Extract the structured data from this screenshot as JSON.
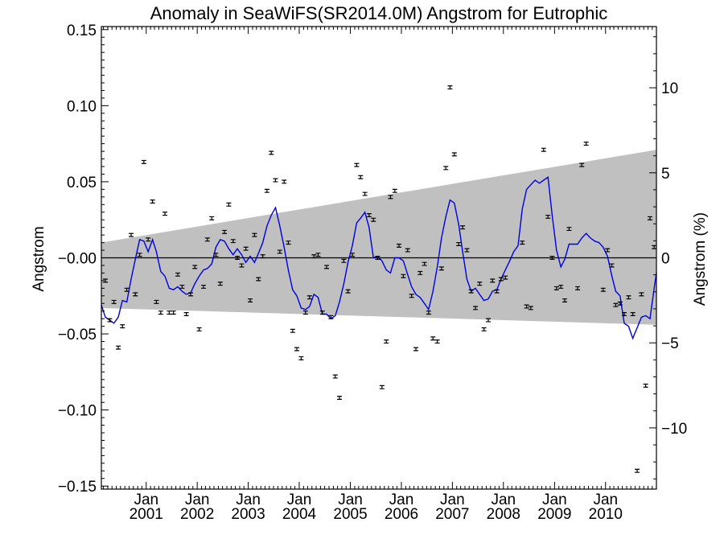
{
  "chart_data": {
    "type": "scatter",
    "title": "Anomaly in SeaWiFS(SR2014.0M) Angstrom for Eutrophic",
    "ylabel": "Angstrom",
    "ylabel_right": "Angstrom (%)",
    "xlim": [
      "2000-02-15",
      "2010-12-31"
    ],
    "ylim": [
      -0.152,
      0.152
    ],
    "ylim_right": [
      -13.6,
      13.6
    ],
    "yticks": [
      -0.15,
      -0.1,
      -0.05,
      0.0,
      0.05,
      0.1,
      0.15
    ],
    "ytick_labels": [
      "−0.15",
      "−0.10",
      "−0.05",
      "−0.00",
      "0.05",
      "0.10",
      "0.15"
    ],
    "yticks_right": [
      -10,
      -5,
      0,
      5,
      10
    ],
    "ytick_right_labels": [
      "−10",
      "−5",
      "0",
      "5",
      "10"
    ],
    "xticks": [
      {
        "date": "2001-01-01",
        "label1": "Jan",
        "label2": "2001"
      },
      {
        "date": "2002-01-01",
        "label1": "Jan",
        "label2": "2002"
      },
      {
        "date": "2003-01-01",
        "label1": "Jan",
        "label2": "2003"
      },
      {
        "date": "2004-01-01",
        "label1": "Jan",
        "label2": "2004"
      },
      {
        "date": "2005-01-01",
        "label1": "Jan",
        "label2": "2005"
      },
      {
        "date": "2006-01-01",
        "label1": "Jan",
        "label2": "2006"
      },
      {
        "date": "2007-01-01",
        "label1": "Jan",
        "label2": "2007"
      },
      {
        "date": "2008-01-01",
        "label1": "Jan",
        "label2": "2008"
      },
      {
        "date": "2009-01-01",
        "label1": "Jan",
        "label2": "2009"
      },
      {
        "date": "2010-01-01",
        "label1": "Jan",
        "label2": "2010"
      }
    ],
    "zero_line": 0,
    "band": {
      "color": "#c0c0c0",
      "upper": [
        [
          "2000-02-15",
          0.01
        ],
        [
          "2010-12-31",
          0.071
        ]
      ],
      "lower": [
        [
          "2000-02-15",
          -0.033
        ],
        [
          "2010-12-31",
          -0.044
        ]
      ]
    },
    "series": [
      {
        "style": "points_with_errorbars",
        "color": "#000000",
        "error": 0.001,
        "points": [
          [
            "2000-03-15",
            -0.015
          ],
          [
            "2000-04-15",
            -0.041
          ],
          [
            "2000-05-15",
            -0.029
          ],
          [
            "2000-06-15",
            -0.059
          ],
          [
            "2000-07-15",
            -0.045
          ],
          [
            "2000-08-15",
            -0.021
          ],
          [
            "2000-09-15",
            0.015
          ],
          [
            "2000-10-15",
            -0.024
          ],
          [
            "2000-11-15",
            0.002
          ],
          [
            "2000-12-15",
            0.063
          ],
          [
            "2001-01-15",
            0.012
          ],
          [
            "2001-02-15",
            0.037
          ],
          [
            "2001-03-15",
            -0.029
          ],
          [
            "2001-04-15",
            -0.036
          ],
          [
            "2001-05-15",
            0.029
          ],
          [
            "2001-06-15",
            -0.036
          ],
          [
            "2001-07-15",
            -0.036
          ],
          [
            "2001-08-15",
            -0.011
          ],
          [
            "2001-09-15",
            -0.019
          ],
          [
            "2001-10-15",
            -0.037
          ],
          [
            "2001-11-15",
            -0.024
          ],
          [
            "2001-12-15",
            -0.006
          ],
          [
            "2002-01-15",
            -0.047
          ],
          [
            "2002-02-15",
            -0.019
          ],
          [
            "2002-03-15",
            0.012
          ],
          [
            "2002-04-15",
            0.026
          ],
          [
            "2002-05-15",
            0.002
          ],
          [
            "2002-06-15",
            -0.017
          ],
          [
            "2002-07-15",
            0.017
          ],
          [
            "2002-08-15",
            0.035
          ],
          [
            "2002-09-15",
            0.011
          ],
          [
            "2002-10-15",
            0.0
          ],
          [
            "2002-11-15",
            -0.005
          ],
          [
            "2002-12-15",
            0.006
          ],
          [
            "2003-01-15",
            -0.028
          ],
          [
            "2003-02-15",
            0.015
          ],
          [
            "2003-03-15",
            -0.014
          ],
          [
            "2003-04-15",
            0.001
          ],
          [
            "2003-05-15",
            0.044
          ],
          [
            "2003-06-15",
            0.069
          ],
          [
            "2003-07-15",
            0.051
          ],
          [
            "2003-08-15",
            0.004
          ],
          [
            "2003-09-15",
            0.05
          ],
          [
            "2003-10-15",
            0.01
          ],
          [
            "2003-11-15",
            -0.048
          ],
          [
            "2003-12-15",
            -0.06
          ],
          [
            "2004-01-15",
            -0.066
          ],
          [
            "2004-02-15",
            -0.036
          ],
          [
            "2004-03-15",
            -0.026
          ],
          [
            "2004-04-15",
            0.001
          ],
          [
            "2004-05-15",
            0.002
          ],
          [
            "2004-06-15",
            -0.036
          ],
          [
            "2004-07-15",
            -0.006
          ],
          [
            "2004-08-15",
            -0.039
          ],
          [
            "2004-09-15",
            -0.078
          ],
          [
            "2004-10-15",
            -0.092
          ],
          [
            "2004-11-15",
            -0.002
          ],
          [
            "2004-12-15",
            -0.022
          ],
          [
            "2005-01-15",
            0.002
          ],
          [
            "2005-02-15",
            0.061
          ],
          [
            "2005-03-15",
            0.053
          ],
          [
            "2005-04-15",
            0.042
          ],
          [
            "2005-05-15",
            0.028
          ],
          [
            "2005-06-15",
            0.025
          ],
          [
            "2005-07-15",
            0.0
          ],
          [
            "2005-08-15",
            -0.085
          ],
          [
            "2005-09-15",
            -0.055
          ],
          [
            "2005-10-15",
            0.04
          ],
          [
            "2005-11-15",
            0.044
          ],
          [
            "2005-12-15",
            0.008
          ],
          [
            "2006-01-15",
            -0.012
          ],
          [
            "2006-02-15",
            0.005
          ],
          [
            "2006-03-15",
            -0.025
          ],
          [
            "2006-04-15",
            -0.06
          ],
          [
            "2006-05-15",
            -0.01
          ],
          [
            "2006-06-15",
            -0.004
          ],
          [
            "2006-07-15",
            -0.036
          ],
          [
            "2006-08-15",
            -0.053
          ],
          [
            "2006-09-15",
            -0.055
          ],
          [
            "2006-10-15",
            -0.007
          ],
          [
            "2006-11-15",
            0.059
          ],
          [
            "2006-12-15",
            0.112
          ],
          [
            "2007-01-15",
            0.068
          ],
          [
            "2007-02-15",
            0.009
          ],
          [
            "2007-03-15",
            0.02
          ],
          [
            "2007-04-15",
            0.005
          ],
          [
            "2007-05-15",
            -0.022
          ],
          [
            "2007-06-15",
            -0.033
          ],
          [
            "2007-07-15",
            -0.017
          ],
          [
            "2007-08-15",
            -0.047
          ],
          [
            "2007-09-15",
            -0.041
          ],
          [
            "2007-10-15",
            -0.015
          ],
          [
            "2007-11-15",
            -0.022
          ],
          [
            "2007-12-15",
            -0.014
          ],
          [
            "2008-01-15",
            -0.013
          ],
          [
            "2008-05-15",
            0.01
          ],
          [
            "2008-06-15",
            -0.032
          ],
          [
            "2008-07-15",
            -0.033
          ],
          [
            "2008-10-15",
            0.071
          ],
          [
            "2008-11-15",
            0.027
          ],
          [
            "2008-12-15",
            0.0
          ],
          [
            "2009-01-15",
            -0.02
          ],
          [
            "2009-02-15",
            -0.019
          ],
          [
            "2009-03-15",
            -0.028
          ],
          [
            "2009-04-15",
            0.019
          ],
          [
            "2009-06-15",
            -0.02
          ],
          [
            "2009-07-15",
            0.061
          ],
          [
            "2009-08-15",
            0.075
          ],
          [
            "2009-12-15",
            -0.021
          ],
          [
            "2010-01-15",
            0.005
          ],
          [
            "2010-02-15",
            -0.005
          ],
          [
            "2010-03-15",
            -0.031
          ],
          [
            "2010-04-15",
            -0.03
          ],
          [
            "2010-05-15",
            -0.037
          ],
          [
            "2010-06-15",
            -0.026
          ],
          [
            "2010-07-15",
            -0.037
          ],
          [
            "2010-08-15",
            -0.14
          ],
          [
            "2010-09-15",
            -0.024
          ],
          [
            "2010-10-15",
            -0.084
          ],
          [
            "2010-11-15",
            0.026
          ],
          [
            "2010-12-15",
            0.007
          ]
        ]
      },
      {
        "style": "line",
        "color": "#0000dd",
        "points": [
          [
            "2000-02-15",
            -0.031
          ],
          [
            "2000-03-15",
            -0.039
          ],
          [
            "2000-04-15",
            -0.041
          ],
          [
            "2000-05-15",
            -0.043
          ],
          [
            "2000-06-15",
            -0.039
          ],
          [
            "2000-07-15",
            -0.028
          ],
          [
            "2000-08-15",
            -0.029
          ],
          [
            "2000-09-15",
            -0.014
          ],
          [
            "2000-10-15",
            -0.001
          ],
          [
            "2000-11-15",
            0.012
          ],
          [
            "2000-12-15",
            0.011
          ],
          [
            "2001-01-15",
            0.004
          ],
          [
            "2001-02-15",
            0.012
          ],
          [
            "2001-03-15",
            0.004
          ],
          [
            "2001-04-15",
            -0.009
          ],
          [
            "2001-05-15",
            -0.012
          ],
          [
            "2001-06-15",
            -0.02
          ],
          [
            "2001-07-15",
            -0.021
          ],
          [
            "2001-08-15",
            -0.019
          ],
          [
            "2001-09-15",
            -0.022
          ],
          [
            "2001-10-15",
            -0.024
          ],
          [
            "2001-11-15",
            -0.023
          ],
          [
            "2001-12-15",
            -0.017
          ],
          [
            "2002-01-15",
            -0.012
          ],
          [
            "2002-02-15",
            -0.008
          ],
          [
            "2002-03-15",
            -0.007
          ],
          [
            "2002-04-15",
            -0.004
          ],
          [
            "2002-05-15",
            0.007
          ],
          [
            "2002-06-15",
            0.012
          ],
          [
            "2002-07-15",
            0.011
          ],
          [
            "2002-08-15",
            0.006
          ],
          [
            "2002-09-15",
            0.002
          ],
          [
            "2002-10-15",
            0.006
          ],
          [
            "2002-11-15",
            0.002
          ],
          [
            "2002-12-15",
            -0.003
          ],
          [
            "2003-01-15",
            0.001
          ],
          [
            "2003-02-15",
            -0.003
          ],
          [
            "2003-03-15",
            0.003
          ],
          [
            "2003-04-15",
            0.01
          ],
          [
            "2003-05-15",
            0.021
          ],
          [
            "2003-06-15",
            0.028
          ],
          [
            "2003-07-15",
            0.033
          ],
          [
            "2003-08-15",
            0.021
          ],
          [
            "2003-09-15",
            0.007
          ],
          [
            "2003-10-15",
            -0.008
          ],
          [
            "2003-11-15",
            -0.021
          ],
          [
            "2003-12-15",
            -0.025
          ],
          [
            "2004-01-15",
            -0.033
          ],
          [
            "2004-02-15",
            -0.034
          ],
          [
            "2004-03-15",
            -0.032
          ],
          [
            "2004-04-15",
            -0.024
          ],
          [
            "2004-05-15",
            -0.026
          ],
          [
            "2004-06-15",
            -0.037
          ],
          [
            "2004-07-15",
            -0.037
          ],
          [
            "2004-08-15",
            -0.04
          ],
          [
            "2004-09-15",
            -0.038
          ],
          [
            "2004-10-15",
            -0.029
          ],
          [
            "2004-11-15",
            -0.017
          ],
          [
            "2004-12-15",
            -0.003
          ],
          [
            "2005-01-15",
            0.008
          ],
          [
            "2005-02-15",
            0.023
          ],
          [
            "2005-03-15",
            0.026
          ],
          [
            "2005-04-15",
            0.03
          ],
          [
            "2005-05-15",
            0.02
          ],
          [
            "2005-06-15",
            0.0
          ],
          [
            "2005-07-15",
            0.001
          ],
          [
            "2005-08-15",
            -0.002
          ],
          [
            "2005-09-15",
            -0.008
          ],
          [
            "2005-10-15",
            -0.01
          ],
          [
            "2005-11-15",
            0.0
          ],
          [
            "2005-12-15",
            0.0
          ],
          [
            "2006-01-15",
            -0.002
          ],
          [
            "2006-02-15",
            -0.011
          ],
          [
            "2006-03-15",
            -0.019
          ],
          [
            "2006-04-15",
            -0.024
          ],
          [
            "2006-05-15",
            -0.026
          ],
          [
            "2006-06-15",
            -0.03
          ],
          [
            "2006-07-15",
            -0.034
          ],
          [
            "2006-08-15",
            -0.022
          ],
          [
            "2006-09-15",
            -0.006
          ],
          [
            "2006-10-15",
            0.013
          ],
          [
            "2006-11-15",
            0.027
          ],
          [
            "2006-12-15",
            0.038
          ],
          [
            "2007-01-15",
            0.036
          ],
          [
            "2007-02-15",
            0.022
          ],
          [
            "2007-03-15",
            0.004
          ],
          [
            "2007-04-15",
            -0.014
          ],
          [
            "2007-05-15",
            -0.022
          ],
          [
            "2007-06-15",
            -0.02
          ],
          [
            "2007-07-15",
            -0.024
          ],
          [
            "2007-08-15",
            -0.028
          ],
          [
            "2007-09-15",
            -0.027
          ],
          [
            "2007-10-15",
            -0.022
          ],
          [
            "2007-11-15",
            -0.021
          ],
          [
            "2007-12-15",
            -0.014
          ],
          [
            "2008-01-15",
            -0.008
          ],
          [
            "2008-02-15",
            -0.002
          ],
          [
            "2008-03-15",
            0.004
          ],
          [
            "2008-04-15",
            0.008
          ],
          [
            "2008-05-15",
            0.032
          ],
          [
            "2008-06-15",
            0.045
          ],
          [
            "2008-07-15",
            0.048
          ],
          [
            "2008-08-15",
            0.051
          ],
          [
            "2008-09-15",
            0.049
          ],
          [
            "2008-10-15",
            0.051
          ],
          [
            "2008-11-15",
            0.053
          ],
          [
            "2008-12-15",
            0.028
          ],
          [
            "2009-01-15",
            0.005
          ],
          [
            "2009-02-15",
            -0.006
          ],
          [
            "2009-03-15",
            -0.001
          ],
          [
            "2009-04-15",
            0.009
          ],
          [
            "2009-05-15",
            0.009
          ],
          [
            "2009-06-15",
            0.009
          ],
          [
            "2009-07-15",
            0.013
          ],
          [
            "2009-08-15",
            0.016
          ],
          [
            "2009-09-15",
            0.013
          ],
          [
            "2009-10-15",
            0.011
          ],
          [
            "2009-11-15",
            0.01
          ],
          [
            "2009-12-15",
            0.007
          ],
          [
            "2010-01-15",
            0.001
          ],
          [
            "2010-02-15",
            -0.012
          ],
          [
            "2010-03-15",
            -0.022
          ],
          [
            "2010-04-15",
            -0.025
          ],
          [
            "2010-05-15",
            -0.043
          ],
          [
            "2010-06-15",
            -0.045
          ],
          [
            "2010-07-15",
            -0.053
          ],
          [
            "2010-08-15",
            -0.046
          ],
          [
            "2010-09-15",
            -0.039
          ],
          [
            "2010-10-15",
            -0.038
          ],
          [
            "2010-11-15",
            -0.04
          ],
          [
            "2010-12-15",
            -0.02
          ],
          [
            "2010-12-31",
            -0.01
          ]
        ]
      }
    ]
  }
}
